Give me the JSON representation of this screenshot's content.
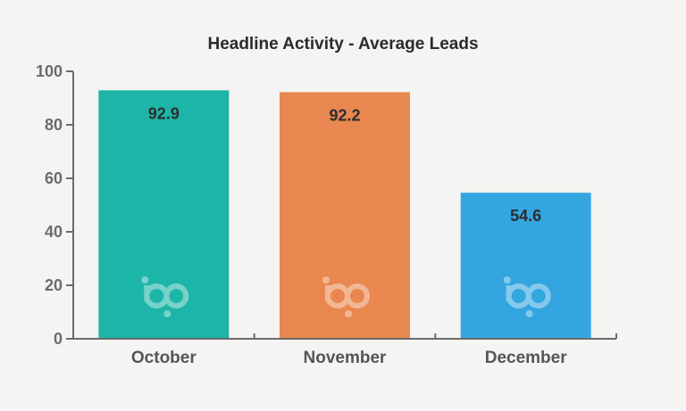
{
  "chart_data": {
    "type": "bar",
    "title": "Headline Activity - Average Leads",
    "xlabel": "",
    "ylabel": "",
    "categories": [
      "October",
      "November",
      "December"
    ],
    "values": [
      92.9,
      92.2,
      54.6
    ],
    "value_labels": [
      "92.9",
      "92.2",
      "54.6"
    ],
    "colors": [
      "#1db5a8",
      "#e8874f",
      "#33a6e0"
    ],
    "ylim": [
      0,
      100
    ],
    "yticks": [
      0,
      20,
      40,
      60,
      80,
      100
    ],
    "grid": false,
    "legend": "none"
  }
}
